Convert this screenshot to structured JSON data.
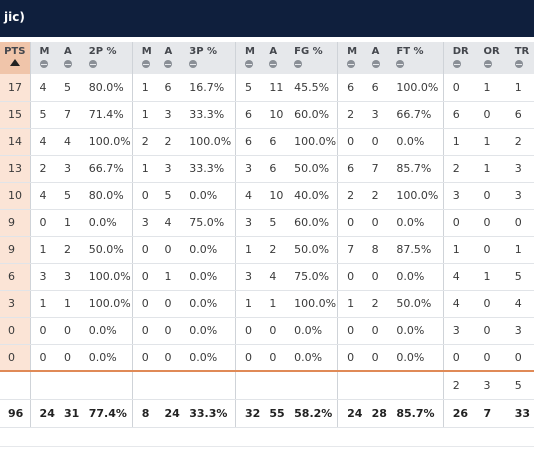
{
  "window": {
    "title": "jic)"
  },
  "columns": [
    {
      "label": "PTS",
      "sorted": true
    },
    {
      "label": "M"
    },
    {
      "label": "A"
    },
    {
      "label": "2P %"
    },
    {
      "label": "M"
    },
    {
      "label": "A"
    },
    {
      "label": "3P %"
    },
    {
      "label": "M"
    },
    {
      "label": "A"
    },
    {
      "label": "FG %"
    },
    {
      "label": "M"
    },
    {
      "label": "A"
    },
    {
      "label": "FT %"
    },
    {
      "label": "DR"
    },
    {
      "label": "OR"
    },
    {
      "label": "TR"
    }
  ],
  "rows": [
    [
      "17",
      "4",
      "5",
      "80.0%",
      "1",
      "6",
      "16.7%",
      "5",
      "11",
      "45.5%",
      "6",
      "6",
      "100.0%",
      "0",
      "1",
      "1"
    ],
    [
      "15",
      "5",
      "7",
      "71.4%",
      "1",
      "3",
      "33.3%",
      "6",
      "10",
      "60.0%",
      "2",
      "3",
      "66.7%",
      "6",
      "0",
      "6"
    ],
    [
      "14",
      "4",
      "4",
      "100.0%",
      "2",
      "2",
      "100.0%",
      "6",
      "6",
      "100.0%",
      "0",
      "0",
      "0.0%",
      "1",
      "1",
      "2"
    ],
    [
      "13",
      "2",
      "3",
      "66.7%",
      "1",
      "3",
      "33.3%",
      "3",
      "6",
      "50.0%",
      "6",
      "7",
      "85.7%",
      "2",
      "1",
      "3"
    ],
    [
      "10",
      "4",
      "5",
      "80.0%",
      "0",
      "5",
      "0.0%",
      "4",
      "10",
      "40.0%",
      "2",
      "2",
      "100.0%",
      "3",
      "0",
      "3"
    ],
    [
      "9",
      "0",
      "1",
      "0.0%",
      "3",
      "4",
      "75.0%",
      "3",
      "5",
      "60.0%",
      "0",
      "0",
      "0.0%",
      "0",
      "0",
      "0"
    ],
    [
      "9",
      "1",
      "2",
      "50.0%",
      "0",
      "0",
      "0.0%",
      "1",
      "2",
      "50.0%",
      "7",
      "8",
      "87.5%",
      "1",
      "0",
      "1"
    ],
    [
      "6",
      "3",
      "3",
      "100.0%",
      "0",
      "1",
      "0.0%",
      "3",
      "4",
      "75.0%",
      "0",
      "0",
      "0.0%",
      "4",
      "1",
      "5"
    ],
    [
      "3",
      "1",
      "1",
      "100.0%",
      "0",
      "0",
      "0.0%",
      "1",
      "1",
      "100.0%",
      "1",
      "2",
      "50.0%",
      "4",
      "0",
      "4"
    ],
    [
      "0",
      "0",
      "0",
      "0.0%",
      "0",
      "0",
      "0.0%",
      "0",
      "0",
      "0.0%",
      "0",
      "0",
      "0.0%",
      "3",
      "0",
      "3"
    ],
    [
      "0",
      "0",
      "0",
      "0.0%",
      "0",
      "0",
      "0.0%",
      "0",
      "0",
      "0.0%",
      "0",
      "0",
      "0.0%",
      "0",
      "0",
      "0"
    ]
  ],
  "team_rebounds": [
    "",
    "",
    "",
    "",
    "",
    "",
    "",
    "",
    "",
    "",
    "",
    "",
    "",
    "2",
    "3",
    "5"
  ],
  "totals": [
    "96",
    "24",
    "31",
    "77.4%",
    "8",
    "24",
    "33.3%",
    "32",
    "55",
    "58.2%",
    "24",
    "28",
    "85.7%",
    "26",
    "7",
    "33"
  ]
}
